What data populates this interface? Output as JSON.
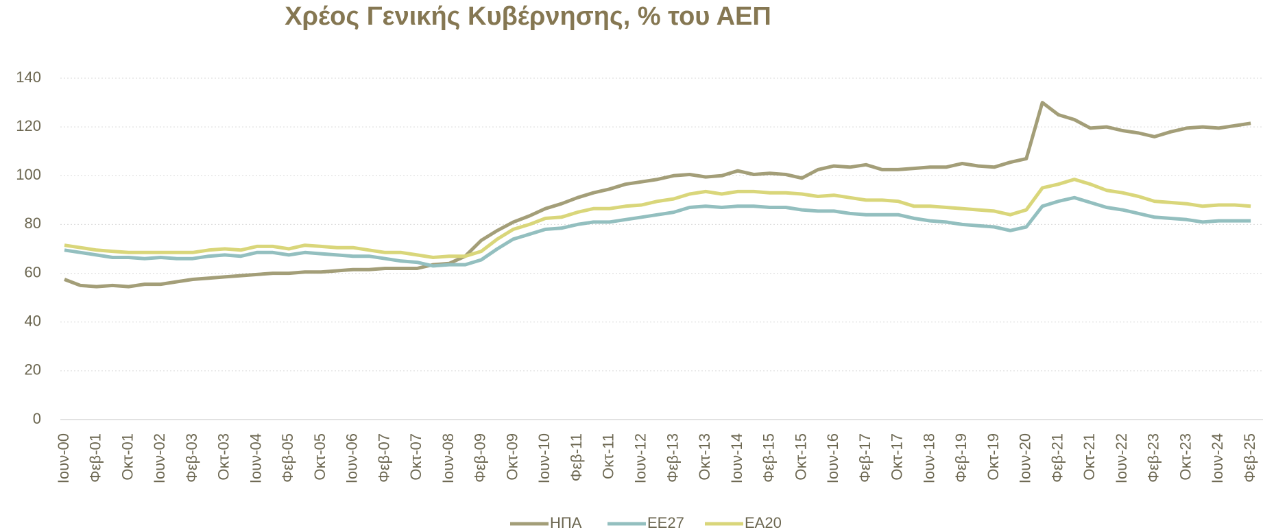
{
  "chart_data": {
    "type": "line",
    "title": "Χρέος Γενικής Κυβέρνησης, % του ΑΕΠ",
    "categories": [
      "Ιουν-00",
      null,
      "Φεβ-01",
      null,
      "Οκτ-01",
      null,
      "Ιουν-02",
      null,
      "Φεβ-03",
      null,
      "Οκτ-03",
      null,
      "Ιουν-04",
      null,
      "Φεβ-05",
      null,
      "Οκτ-05",
      null,
      "Ιουν-06",
      null,
      "Φεβ-07",
      null,
      "Οκτ-07",
      null,
      "Ιουν-08",
      null,
      "Φεβ-09",
      null,
      "Οκτ-09",
      null,
      "Ιουν-10",
      null,
      "Φεβ-11",
      null,
      "Οκτ-11",
      null,
      "Ιουν-12",
      null,
      "Φεβ-13",
      null,
      "Οκτ-13",
      null,
      "Ιουν-14",
      null,
      "Φεβ-15",
      null,
      "Οκτ-15",
      null,
      "Ιουν-16",
      null,
      "Φεβ-17",
      null,
      "Οκτ-17",
      null,
      "Ιουν-18",
      null,
      "Φεβ-19",
      null,
      "Οκτ-19",
      null,
      "Ιουν-20",
      null,
      "Φεβ-21",
      null,
      "Οκτ-21",
      null,
      "Ιουν-22",
      null,
      "Φεβ-23",
      null,
      "Οκτ-23",
      null,
      "Ιουν-24",
      null,
      "Φεβ-25"
    ],
    "series": [
      {
        "name": "ΗΠΑ",
        "color": "#a39e78",
        "values": [
          57.5,
          55,
          54.5,
          55,
          54.5,
          55.5,
          55.5,
          56.5,
          57.5,
          58,
          58.5,
          59,
          59.5,
          60,
          60,
          60.5,
          60.5,
          61,
          61.5,
          61.5,
          62,
          62,
          62,
          63.5,
          64,
          67,
          73.5,
          77.5,
          81,
          83.5,
          86.5,
          88.5,
          91,
          93,
          94.5,
          96.5,
          97.5,
          98.5,
          100,
          100.5,
          99.5,
          100,
          102,
          100.5,
          101,
          100.5,
          99,
          102.5,
          104,
          103.5,
          104.5,
          102.5,
          102.5,
          103,
          103.5,
          103.5,
          105,
          104,
          103.5,
          105.5,
          107,
          130,
          125,
          123,
          119.5,
          120,
          118.5,
          117.5,
          116,
          118,
          119.5,
          120,
          119.5,
          120.5,
          121.5
        ]
      },
      {
        "name": "ΕΕ27",
        "color": "#93bfbf",
        "values": [
          69.5,
          68.5,
          67.5,
          66.5,
          66.5,
          66,
          66.5,
          66,
          66,
          67,
          67.5,
          67,
          68.5,
          68.5,
          67.5,
          68.5,
          68,
          67.5,
          67,
          67,
          66,
          65,
          64.5,
          63,
          63.5,
          63.5,
          65.5,
          70,
          74,
          76,
          78,
          78.5,
          80,
          81,
          81,
          82,
          83,
          84,
          85,
          87,
          87.5,
          87,
          87.5,
          87.5,
          87,
          87,
          86,
          85.5,
          85.5,
          84.5,
          84,
          84,
          84,
          82.5,
          81.5,
          81,
          80,
          79.5,
          79,
          77.5,
          79,
          87.5,
          89.5,
          91,
          89,
          87,
          86,
          84.5,
          83,
          82.5,
          82,
          81,
          81.5,
          81.5,
          81.5
        ]
      },
      {
        "name": "ΕΑ20",
        "color": "#d9d67a",
        "values": [
          71.5,
          70.5,
          69.5,
          69,
          68.5,
          68.5,
          68.5,
          68.5,
          68.5,
          69.5,
          70,
          69.5,
          71,
          71,
          70,
          71.5,
          71,
          70.5,
          70.5,
          69.5,
          68.5,
          68.5,
          67.5,
          66.5,
          67,
          67,
          69,
          74,
          78,
          80,
          82.5,
          83,
          85,
          86.5,
          86.5,
          87.5,
          88,
          89.5,
          90.5,
          92.5,
          93.5,
          92.5,
          93.5,
          93.5,
          93,
          93,
          92.5,
          91.5,
          92,
          91,
          90,
          90,
          89.5,
          87.5,
          87.5,
          87,
          86.5,
          86,
          85.5,
          84,
          86,
          95,
          96.5,
          98.5,
          96.5,
          94,
          93,
          91.5,
          89.5,
          89,
          88.5,
          87.5,
          88,
          88,
          87.5
        ]
      }
    ],
    "ylim": [
      0,
      140
    ],
    "yticks": [
      0,
      20,
      40,
      60,
      80,
      100,
      120,
      140
    ],
    "grid": true,
    "legend": "bottom"
  }
}
